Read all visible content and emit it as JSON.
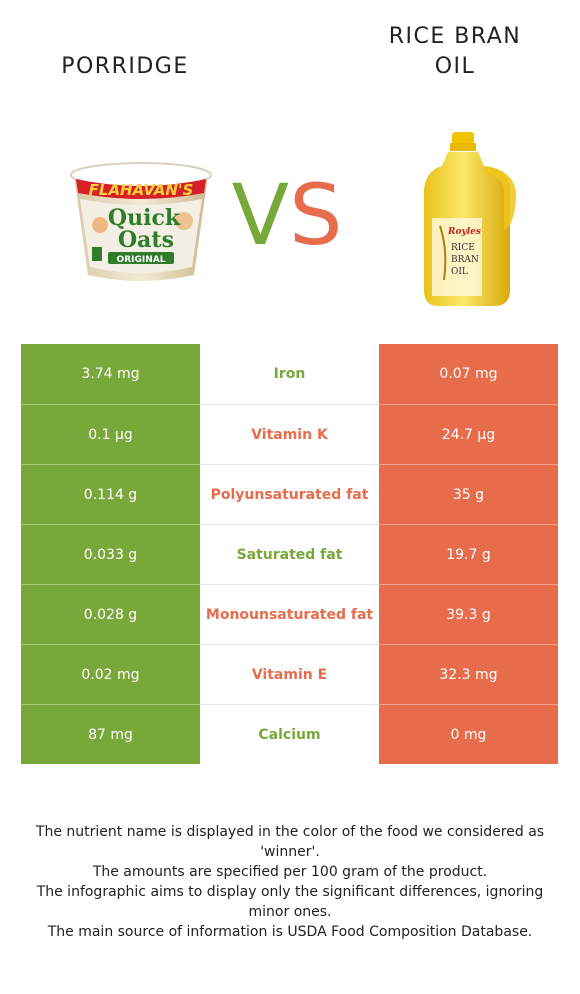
{
  "left_food": {
    "title": "PORRIDGE",
    "image": "porridge-cup-icon"
  },
  "right_food": {
    "title_line1": "RICE BRAN",
    "title_line2": "OIL",
    "image": "oil-bottle-icon"
  },
  "vs": {
    "v": "V",
    "s": "S"
  },
  "colors": {
    "left": "#79a83a",
    "right": "#e66c4b"
  },
  "image_text": {
    "porridge_brand": "FLAHAVAN'S",
    "porridge_line1": "Quick",
    "porridge_line2": "Oats",
    "porridge_variant": "ORIGINAL",
    "oil_brand": "Royles",
    "oil_label1": "RICE",
    "oil_label2": "BRAN",
    "oil_label3": "OIL"
  },
  "nutrients": [
    {
      "left": "3.74 mg",
      "name": "Iron",
      "right": "0.07 mg",
      "winner": "left"
    },
    {
      "left": "0.1 µg",
      "name": "Vitamin K",
      "right": "24.7 µg",
      "winner": "right"
    },
    {
      "left": "0.114 g",
      "name": "Polyunsaturated fat",
      "right": "35 g",
      "winner": "right"
    },
    {
      "left": "0.033 g",
      "name": "Saturated fat",
      "right": "19.7 g",
      "winner": "left"
    },
    {
      "left": "0.028 g",
      "name": "Monounsaturated fat",
      "right": "39.3 g",
      "winner": "right"
    },
    {
      "left": "0.02 mg",
      "name": "Vitamin E",
      "right": "32.3 mg",
      "winner": "right"
    },
    {
      "left": "87 mg",
      "name": "Calcium",
      "right": "0 mg",
      "winner": "left"
    }
  ],
  "footer": {
    "line1": "The nutrient name is displayed in the color of the food we considered as 'winner'.",
    "line2": "The amounts are specified per 100 gram of the product.",
    "line3": "The infographic aims to display only the significant differences, ignoring minor ones.",
    "line4": "The main source of information is USDA Food Composition Database."
  }
}
